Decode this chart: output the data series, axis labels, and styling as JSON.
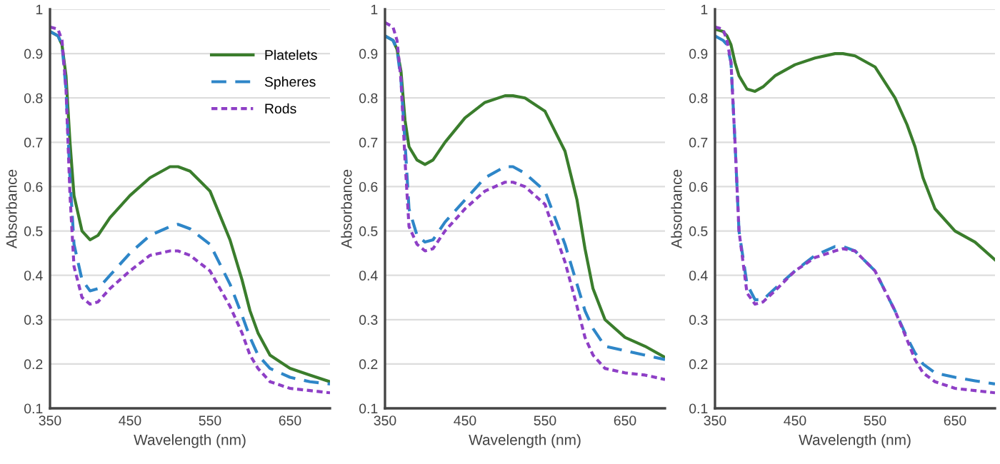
{
  "chart_data": [
    {
      "type": "line",
      "xlabel": "Wavelength (nm)",
      "ylabel": "Absorbance",
      "xlim": [
        350,
        700
      ],
      "xticks": [
        350,
        450,
        550,
        650
      ],
      "ylim": [
        0.1,
        1
      ],
      "yticks": [
        0.1,
        0.2,
        0.3,
        0.4,
        0.5,
        0.6,
        0.7,
        0.8,
        0.9,
        1
      ],
      "grid": "y",
      "legend": "top right",
      "marker": "none",
      "x": [
        350,
        360,
        365,
        370,
        375,
        380,
        390,
        400,
        410,
        425,
        450,
        475,
        500,
        510,
        525,
        550,
        575,
        590,
        600,
        610,
        625,
        650,
        675,
        700
      ],
      "series": [
        {
          "name": "Platelets",
          "color": "#3a7d2c",
          "line_style": "solid",
          "values": [
            0.95,
            0.94,
            0.92,
            0.85,
            0.7,
            0.58,
            0.5,
            0.48,
            0.49,
            0.53,
            0.58,
            0.62,
            0.645,
            0.645,
            0.635,
            0.59,
            0.48,
            0.39,
            0.32,
            0.27,
            0.22,
            0.19,
            0.175,
            0.16
          ]
        },
        {
          "name": "Spheres",
          "color": "#2e86c8",
          "line_style": "dashed",
          "values": [
            0.95,
            0.94,
            0.92,
            0.82,
            0.62,
            0.47,
            0.39,
            0.365,
            0.37,
            0.4,
            0.45,
            0.49,
            0.51,
            0.515,
            0.505,
            0.47,
            0.38,
            0.31,
            0.26,
            0.22,
            0.19,
            0.17,
            0.16,
            0.155
          ]
        },
        {
          "name": "Rods",
          "color": "#8e3fc6",
          "line_style": "dotted",
          "values": [
            0.96,
            0.955,
            0.93,
            0.82,
            0.58,
            0.42,
            0.35,
            0.335,
            0.34,
            0.37,
            0.41,
            0.445,
            0.455,
            0.455,
            0.445,
            0.41,
            0.33,
            0.27,
            0.22,
            0.19,
            0.16,
            0.145,
            0.14,
            0.135
          ]
        }
      ]
    },
    {
      "type": "line",
      "xlabel": "Wavelength (nm)",
      "ylabel": "Absorbance",
      "xlim": [
        350,
        700
      ],
      "xticks": [
        350,
        450,
        550,
        650
      ],
      "ylim": [
        0.1,
        1
      ],
      "yticks": [
        0.1,
        0.2,
        0.3,
        0.4,
        0.5,
        0.6,
        0.7,
        0.8,
        0.9,
        1
      ],
      "grid": "y",
      "marker": "none",
      "x": [
        350,
        360,
        365,
        370,
        375,
        380,
        390,
        400,
        410,
        425,
        450,
        475,
        500,
        510,
        525,
        550,
        575,
        590,
        600,
        610,
        625,
        650,
        675,
        700
      ],
      "series": [
        {
          "color": "#3a7d2c",
          "line_style": "solid",
          "values": [
            0.94,
            0.93,
            0.91,
            0.86,
            0.75,
            0.69,
            0.66,
            0.65,
            0.66,
            0.7,
            0.755,
            0.79,
            0.805,
            0.805,
            0.8,
            0.77,
            0.68,
            0.57,
            0.46,
            0.37,
            0.3,
            0.26,
            0.24,
            0.215
          ]
        },
        {
          "color": "#2e86c8",
          "line_style": "dashed",
          "values": [
            0.94,
            0.93,
            0.91,
            0.84,
            0.7,
            0.55,
            0.49,
            0.475,
            0.48,
            0.52,
            0.57,
            0.62,
            0.645,
            0.645,
            0.63,
            0.59,
            0.47,
            0.38,
            0.32,
            0.28,
            0.24,
            0.23,
            0.22,
            0.21
          ]
        },
        {
          "color": "#8e3fc6",
          "line_style": "dotted",
          "values": [
            0.97,
            0.96,
            0.93,
            0.84,
            0.66,
            0.51,
            0.47,
            0.455,
            0.46,
            0.5,
            0.55,
            0.59,
            0.61,
            0.61,
            0.6,
            0.56,
            0.43,
            0.33,
            0.26,
            0.22,
            0.19,
            0.18,
            0.175,
            0.165
          ]
        }
      ]
    },
    {
      "type": "line",
      "xlabel": "Wavelength (nm)",
      "ylabel": "Absorbance",
      "xlim": [
        350,
        700
      ],
      "xticks": [
        350,
        450,
        550,
        650
      ],
      "ylim": [
        0.1,
        1
      ],
      "yticks": [
        0.1,
        0.2,
        0.3,
        0.4,
        0.5,
        0.6,
        0.7,
        0.8,
        0.9,
        1
      ],
      "grid": "y",
      "marker": "none",
      "x": [
        350,
        360,
        365,
        370,
        375,
        380,
        390,
        400,
        410,
        425,
        450,
        475,
        500,
        510,
        525,
        550,
        575,
        590,
        600,
        610,
        625,
        650,
        675,
        700
      ],
      "series": [
        {
          "color": "#3a7d2c",
          "line_style": "solid",
          "values": [
            0.955,
            0.95,
            0.94,
            0.92,
            0.88,
            0.85,
            0.82,
            0.815,
            0.825,
            0.85,
            0.875,
            0.89,
            0.9,
            0.9,
            0.895,
            0.87,
            0.8,
            0.74,
            0.69,
            0.62,
            0.55,
            0.5,
            0.475,
            0.435
          ]
        },
        {
          "color": "#2e86c8",
          "line_style": "dashed",
          "values": [
            0.94,
            0.93,
            0.92,
            0.88,
            0.7,
            0.5,
            0.38,
            0.345,
            0.345,
            0.37,
            0.41,
            0.445,
            0.465,
            0.465,
            0.455,
            0.41,
            0.32,
            0.26,
            0.225,
            0.2,
            0.18,
            0.17,
            0.162,
            0.155
          ]
        },
        {
          "color": "#8e3fc6",
          "line_style": "dotted",
          "values": [
            0.96,
            0.955,
            0.93,
            0.88,
            0.7,
            0.5,
            0.36,
            0.335,
            0.34,
            0.365,
            0.41,
            0.44,
            0.455,
            0.46,
            0.455,
            0.41,
            0.32,
            0.255,
            0.21,
            0.18,
            0.16,
            0.145,
            0.14,
            0.135
          ]
        }
      ]
    }
  ]
}
